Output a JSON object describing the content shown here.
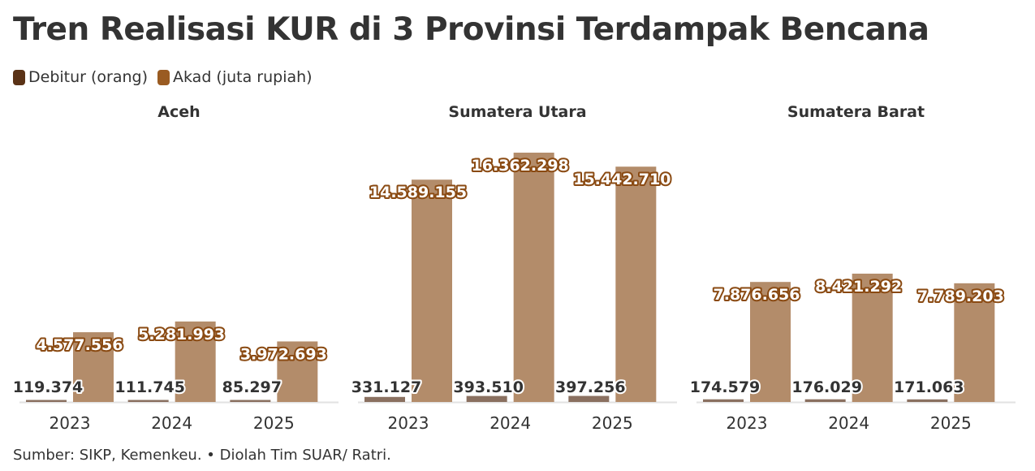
{
  "title": "Tren Realisasi KUR di 3 Provinsi Terdampak Bencana",
  "legend": [
    {
      "label": "Debitur (orang)",
      "color": "#5a3216"
    },
    {
      "label": "Akad (juta rupiah)",
      "color": "#9a5b22"
    }
  ],
  "source": "Sumber: SIKP, Kemenkeu. • Diolah Tim SUAR/ Ratri.",
  "chart_data": {
    "type": "bar",
    "colors": {
      "debitur": "#8a7060",
      "akad": "#b38c6a"
    },
    "ylim": [
      0,
      17000000
    ],
    "categories": [
      "2023",
      "2024",
      "2025"
    ],
    "panels": [
      {
        "name": "Aceh",
        "debitur": {
          "values": [
            119374,
            111745,
            85297
          ],
          "labels": [
            "119.374",
            "111.745",
            "85.297"
          ]
        },
        "akad": {
          "values": [
            4577556,
            5281993,
            3972693
          ],
          "labels": [
            "4.577.556",
            "5.281.993",
            "3.972.693"
          ]
        }
      },
      {
        "name": "Sumatera Utara",
        "debitur": {
          "values": [
            331127,
            393510,
            397256
          ],
          "labels": [
            "331.127",
            "393.510",
            "397.256"
          ]
        },
        "akad": {
          "values": [
            14589155,
            16362298,
            15442710
          ],
          "labels": [
            "14.589.155",
            "16.362.298",
            "15.442.710"
          ]
        }
      },
      {
        "name": "Sumatera Barat",
        "debitur": {
          "values": [
            174579,
            176029,
            171063
          ],
          "labels": [
            "174.579",
            "176.029",
            "171.063"
          ]
        },
        "akad": {
          "values": [
            7876656,
            8421292,
            7789203
          ],
          "labels": [
            "7.876.656",
            "8.421.292",
            "7.789.203"
          ]
        }
      }
    ]
  }
}
